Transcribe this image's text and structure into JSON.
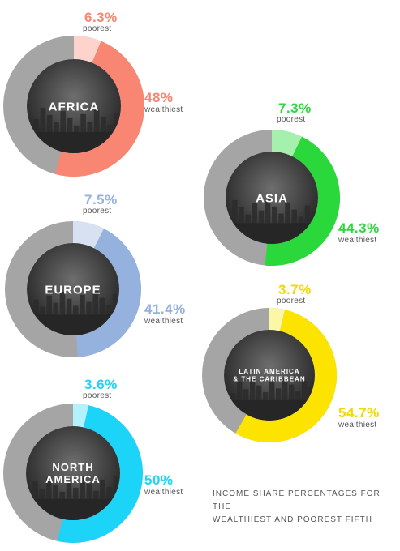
{
  "caption": {
    "line1": "INCOME SHARE PERCENTAGES FOR THE",
    "line2": "WEALTHIEST AND POOREST FIFTH"
  },
  "chart_data": [
    {
      "type": "pie",
      "name": "AFRICA",
      "categories": [
        "poorest",
        "wealthiest"
      ],
      "values": [
        6.3,
        48
      ],
      "labels": [
        "6.3%",
        "48%"
      ],
      "colors": {
        "poorest": "#fdd3cb",
        "wealthiest": "#f98672",
        "remainder": "#a5a5a5",
        "text": "#f98672"
      }
    },
    {
      "type": "pie",
      "name": "ASIA",
      "categories": [
        "poorest",
        "wealthiest"
      ],
      "values": [
        7.3,
        44.3
      ],
      "labels": [
        "7.3%",
        "44.3%"
      ],
      "colors": {
        "poorest": "#a6f0ad",
        "wealthiest": "#2bd83c",
        "remainder": "#a5a5a5",
        "text": "#2bd83c"
      }
    },
    {
      "type": "pie",
      "name": "EUROPE",
      "categories": [
        "poorest",
        "wealthiest"
      ],
      "values": [
        7.5,
        41.4
      ],
      "labels": [
        "7.5%",
        "41.4%"
      ],
      "colors": {
        "poorest": "#d7e1f1",
        "wealthiest": "#94b2dd",
        "remainder": "#a5a5a5",
        "text": "#94b2dd"
      }
    },
    {
      "type": "pie",
      "name": "LATIN AMERICA & THE CARIBBEAN",
      "categories": [
        "poorest",
        "wealthiest"
      ],
      "values": [
        3.7,
        54.7
      ],
      "labels": [
        "3.7%",
        "54.7%"
      ],
      "colors": {
        "poorest": "#fbf7a6",
        "wealthiest": "#fde300",
        "remainder": "#a5a5a5",
        "text": "#f2d800"
      }
    },
    {
      "type": "pie",
      "name": "NORTH AMERICA",
      "categories": [
        "poorest",
        "wealthiest"
      ],
      "values": [
        3.6,
        50
      ],
      "labels": [
        "3.6%",
        "50%"
      ],
      "colors": {
        "poorest": "#b3f1fd",
        "wealthiest": "#1cd4f8",
        "remainder": "#a5a5a5",
        "text": "#1cd4f8"
      }
    }
  ],
  "label_words": {
    "poorest": "poorest",
    "wealthiest": "wealthiest"
  }
}
